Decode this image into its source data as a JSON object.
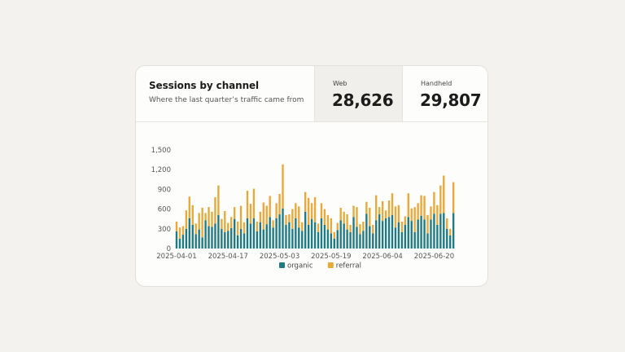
{
  "card": {
    "title": "Sessions by channel",
    "subtitle": "Where the last quarter’s traffic came from"
  },
  "kpis": {
    "web": {
      "label": "Web",
      "value": "28,626"
    },
    "handheld": {
      "label": "Handheld",
      "value": "29,807"
    }
  },
  "colors": {
    "organic": "#1f7a82",
    "referral": "#e6a93a",
    "accent_bg": "#f1efeb"
  },
  "chart_data": {
    "type": "bar",
    "stacked": true,
    "title": "",
    "xlabel": "",
    "ylabel": "",
    "ylim": [
      0,
      1500
    ],
    "yticks": [
      "0",
      "300",
      "600",
      "900",
      "1,200",
      "1,500"
    ],
    "x_tick_labels": [
      "2025-04-01",
      "2025-04-17",
      "2025-05-03",
      "2025-05-19",
      "2025-06-04",
      "2025-06-20"
    ],
    "x_tick_indices": [
      0,
      16,
      32,
      48,
      64,
      80
    ],
    "legend": {
      "position": "bottom",
      "entries": [
        "organic",
        "referral"
      ]
    },
    "grid": false,
    "categories": [
      "2025-04-01",
      "2025-04-02",
      "2025-04-03",
      "2025-04-04",
      "2025-04-05",
      "2025-04-06",
      "2025-04-07",
      "2025-04-08",
      "2025-04-09",
      "2025-04-10",
      "2025-04-11",
      "2025-04-12",
      "2025-04-13",
      "2025-04-14",
      "2025-04-15",
      "2025-04-16",
      "2025-04-17",
      "2025-04-18",
      "2025-04-19",
      "2025-04-20",
      "2025-04-21",
      "2025-04-22",
      "2025-04-23",
      "2025-04-24",
      "2025-04-25",
      "2025-04-26",
      "2025-04-27",
      "2025-04-28",
      "2025-04-29",
      "2025-04-30",
      "2025-05-01",
      "2025-05-02",
      "2025-05-03",
      "2025-05-04",
      "2025-05-05",
      "2025-05-06",
      "2025-05-07",
      "2025-05-08",
      "2025-05-09",
      "2025-05-10",
      "2025-05-11",
      "2025-05-12",
      "2025-05-13",
      "2025-05-14",
      "2025-05-15",
      "2025-05-16",
      "2025-05-17",
      "2025-05-18",
      "2025-05-19",
      "2025-05-20",
      "2025-05-21",
      "2025-05-22",
      "2025-05-23",
      "2025-05-24",
      "2025-05-25",
      "2025-05-26",
      "2025-05-27",
      "2025-05-28",
      "2025-05-29",
      "2025-05-30",
      "2025-05-31",
      "2025-06-01",
      "2025-06-02",
      "2025-06-03",
      "2025-06-04",
      "2025-06-05",
      "2025-06-06",
      "2025-06-07",
      "2025-06-08",
      "2025-06-09",
      "2025-06-10",
      "2025-06-11",
      "2025-06-12",
      "2025-06-13",
      "2025-06-14",
      "2025-06-15",
      "2025-06-16",
      "2025-06-17",
      "2025-06-18",
      "2025-06-19",
      "2025-06-20",
      "2025-06-21",
      "2025-06-22",
      "2025-06-23",
      "2025-06-24",
      "2025-06-25",
      "2025-06-26",
      "2025-06-27",
      "2025-06-28",
      "2025-06-29"
    ],
    "series": [
      {
        "name": "organic",
        "values": [
          260,
          150,
          210,
          300,
          460,
          360,
          220,
          290,
          170,
          430,
          340,
          330,
          380,
          510,
          300,
          250,
          270,
          310,
          450,
          200,
          300,
          230,
          460,
          380,
          460,
          260,
          400,
          290,
          370,
          480,
          320,
          460,
          520,
          610,
          360,
          400,
          300,
          460,
          320,
          270,
          560,
          360,
          450,
          400,
          250,
          460,
          360,
          290,
          230,
          150,
          280,
          430,
          380,
          290,
          250,
          480,
          330,
          220,
          270,
          530,
          340,
          230,
          430,
          520,
          420,
          460,
          480,
          510,
          320,
          400,
          250,
          360,
          480,
          420,
          250,
          440,
          500,
          440,
          230,
          440,
          530,
          360,
          530,
          540,
          300,
          200,
          540,
          0,
          0,
          0
        ]
      },
      {
        "name": "referral",
        "values": [
          150,
          170,
          130,
          280,
          330,
          300,
          160,
          250,
          450,
          110,
          290,
          230,
          400,
          450,
          150,
          320,
          120,
          170,
          180,
          210,
          350,
          170,
          420,
          300,
          450,
          150,
          160,
          410,
          280,
          320,
          110,
          230,
          310,
          670,
          150,
          120,
          300,
          230,
          320,
          130,
          300,
          410,
          240,
          380,
          130,
          230,
          240,
          220,
          230,
          100,
          110,
          190,
          180,
          230,
          110,
          170,
          300,
          150,
          140,
          180,
          280,
          130,
          380,
          110,
          300,
          120,
          250,
          330,
          320,
          260,
          160,
          130,
          360,
          190,
          380,
          250,
          310,
          360,
          280,
          200,
          330,
          300,
          430,
          570,
          160,
          100,
          470,
          0,
          0,
          0
        ]
      }
    ]
  }
}
